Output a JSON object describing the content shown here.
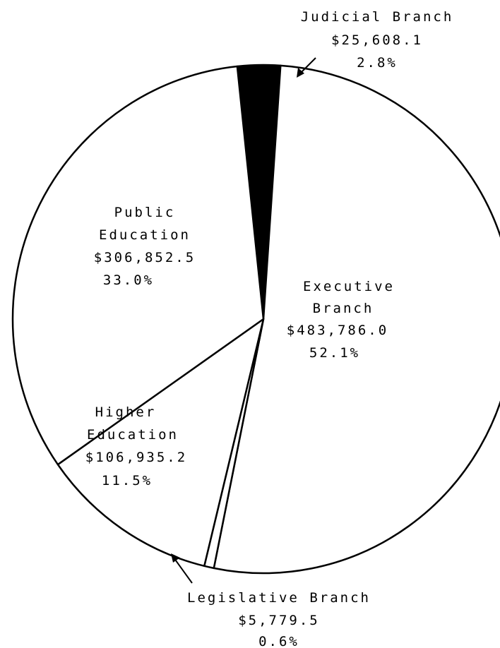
{
  "chart_data": {
    "type": "pie",
    "slices": [
      {
        "name": "Judicial Branch",
        "amount": "$25,608.1",
        "percent_label": "2.8%",
        "value": 25608.1,
        "percent": 2.8,
        "color": "#000000"
      },
      {
        "name": "Executive Branch",
        "amount": "$483,786.0",
        "percent_label": "52.1%",
        "value": 483786.0,
        "percent": 52.1,
        "color": "#ffffff"
      },
      {
        "name": "Legislative Branch",
        "amount": "$5,779.5",
        "percent_label": "0.6%",
        "value": 5779.5,
        "percent": 0.6,
        "color": "#ffffff"
      },
      {
        "name": "Higher Education",
        "amount": "$106,935.2",
        "percent_label": "11.5%",
        "value": 106935.2,
        "percent": 11.5,
        "color": "#ffffff"
      },
      {
        "name": "Public Education",
        "amount": "$306,852.5",
        "percent_label": "33.0%",
        "value": 306852.5,
        "percent": 33.0,
        "color": "#ffffff"
      }
    ],
    "labels": {
      "judicial": {
        "line1": "Judicial Branch",
        "amount": "$25,608.1",
        "percent": "2.8%"
      },
      "executive": {
        "line1": "Executive",
        "line2": "Branch",
        "amount": "$483,786.0",
        "percent": "52.1%"
      },
      "legislative": {
        "line1": "Legislative Branch",
        "amount": "$5,779.5",
        "percent": "0.6%"
      },
      "higher": {
        "line1": "Higher",
        "line2": "Education",
        "amount": "$106,935.2",
        "percent": "11.5%"
      },
      "public": {
        "line1": "Public",
        "line2": "Education",
        "amount": "$306,852.5",
        "percent": "33.0%"
      }
    }
  }
}
